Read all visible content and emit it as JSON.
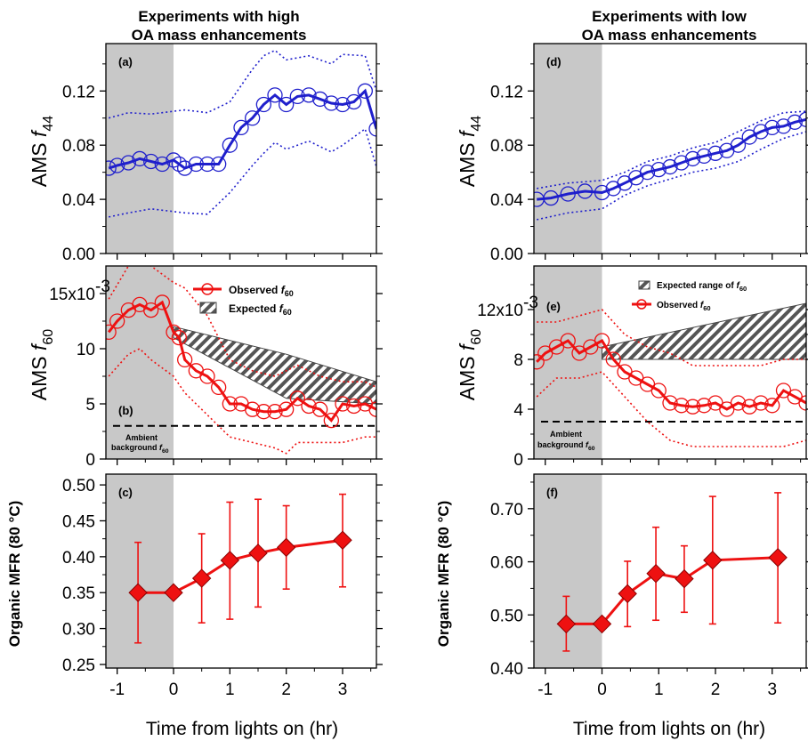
{
  "titles": {
    "left_line1": "Experiments with high",
    "left_line2": "OA mass enhancements",
    "right_line1": "Experiments with low",
    "right_line2": "OA mass enhancements"
  },
  "xlabel": "Time from lights on (hr)",
  "x_ticks": [
    "-1",
    "0",
    "1",
    "2",
    "3"
  ],
  "colors": {
    "f44": "#1f1fcc",
    "f60": "#ee1111",
    "mfr": "#ee1111",
    "shade": "#c8c8c8",
    "hatch": "#555555"
  },
  "panels": {
    "a": {
      "label": "(a)",
      "ylabel_main": "AMS ",
      "ylabel_italic": "f",
      "ylabel_sub": "44",
      "yticks": [
        "0.00",
        "0.04",
        "0.08",
        "0.12"
      ]
    },
    "b": {
      "label": "(b)",
      "ylabel_main": "AMS ",
      "ylabel_italic": "f",
      "ylabel_sub": "60",
      "yticks": [
        "0",
        "5",
        "10",
        "15x10"
      ],
      "exp": "-3",
      "legend_obs": "Observed ",
      "legend_exp": "Expected ",
      "legend_f": "f",
      "legend_sub": "60",
      "ambient1": "Ambient",
      "ambient2": "background ",
      "ambient_f": "f",
      "ambient_sub": "60"
    },
    "c": {
      "label": "(c)",
      "ylabel": "Organic MFR (80 °C)",
      "yticks": [
        "0.25",
        "0.30",
        "0.35",
        "0.40",
        "0.45",
        "0.50"
      ]
    },
    "d": {
      "label": "(d)",
      "ylabel_main": "AMS ",
      "ylabel_italic": "f",
      "ylabel_sub": "44",
      "yticks": [
        "0.00",
        "0.04",
        "0.08",
        "0.12"
      ]
    },
    "e": {
      "label": "(e)",
      "ylabel_main": "AMS ",
      "ylabel_italic": "f",
      "ylabel_sub": "60",
      "yticks": [
        "0",
        "4",
        "8",
        "12x10"
      ],
      "exp": "-3",
      "legend_exp": "Expected range of ",
      "legend_obs": "Observed ",
      "legend_f": "f",
      "legend_sub": "60",
      "ambient1": "Ambient",
      "ambient2": "background ",
      "ambient_f": "f",
      "ambient_sub": "60"
    },
    "f": {
      "label": "(f)",
      "ylabel": "Organic MFR (80 °C)",
      "yticks": [
        "0.40",
        "0.50",
        "0.60",
        "0.70"
      ]
    }
  },
  "chart_data": [
    {
      "type": "line",
      "panel": "a",
      "xlim": [
        -1.2,
        3.6
      ],
      "ylim": [
        0,
        0.155
      ],
      "shaded_x": [
        -1.2,
        0
      ],
      "series": [
        {
          "role": "main",
          "x": [
            -1.15,
            -1.0,
            -0.8,
            -0.6,
            -0.4,
            -0.2,
            0.0,
            0.1,
            0.2,
            0.4,
            0.6,
            0.8,
            1.0,
            1.2,
            1.4,
            1.6,
            1.8,
            2.0,
            2.2,
            2.4,
            2.6,
            2.8,
            3.0,
            3.2,
            3.4,
            3.6
          ],
          "y": [
            0.063,
            0.065,
            0.067,
            0.07,
            0.068,
            0.066,
            0.069,
            0.066,
            0.063,
            0.066,
            0.066,
            0.066,
            0.08,
            0.093,
            0.1,
            0.11,
            0.117,
            0.11,
            0.116,
            0.117,
            0.114,
            0.111,
            0.11,
            0.112,
            0.12,
            0.092
          ]
        },
        {
          "role": "upper",
          "x": [
            -1.15,
            -0.8,
            -0.4,
            0.0,
            0.2,
            0.6,
            1.0,
            1.2,
            1.4,
            1.6,
            1.8,
            2.0,
            2.4,
            2.8,
            3.0,
            3.4,
            3.6
          ],
          "y": [
            0.1,
            0.104,
            0.103,
            0.105,
            0.106,
            0.104,
            0.112,
            0.124,
            0.136,
            0.146,
            0.15,
            0.143,
            0.146,
            0.14,
            0.147,
            0.146,
            0.12
          ]
        },
        {
          "role": "lower",
          "x": [
            -1.15,
            -0.8,
            -0.4,
            0.0,
            0.2,
            0.6,
            1.0,
            1.2,
            1.4,
            1.6,
            1.8,
            2.0,
            2.4,
            2.8,
            3.0,
            3.4,
            3.6
          ],
          "y": [
            0.027,
            0.03,
            0.033,
            0.031,
            0.03,
            0.029,
            0.045,
            0.055,
            0.065,
            0.074,
            0.082,
            0.077,
            0.083,
            0.075,
            0.08,
            0.092,
            0.064
          ]
        }
      ]
    },
    {
      "type": "line",
      "panel": "b",
      "xlim": [
        -1.2,
        3.6
      ],
      "ylim": [
        0,
        17.5
      ],
      "y_scale_note": "x10^-3",
      "shaded_x": [
        -1.2,
        0
      ],
      "expected_band": {
        "x": [
          0.0,
          2.0,
          3.6
        ],
        "upper": [
          12.0,
          9.5,
          7.0
        ],
        "lower": [
          11.0,
          5.5,
          5.0
        ]
      },
      "ambient_background": 3.0,
      "series": [
        {
          "name": "Observed f60",
          "role": "main",
          "x": [
            -1.15,
            -1.0,
            -0.8,
            -0.6,
            -0.4,
            -0.2,
            0.0,
            0.1,
            0.2,
            0.4,
            0.6,
            0.8,
            1.0,
            1.2,
            1.4,
            1.6,
            1.8,
            2.0,
            2.2,
            2.4,
            2.6,
            2.8,
            3.0,
            3.2,
            3.4,
            3.6
          ],
          "y": [
            11.5,
            12.5,
            13.5,
            14.0,
            13.5,
            14.2,
            11.5,
            11.0,
            9.0,
            8.0,
            7.5,
            6.5,
            5.0,
            5.0,
            4.5,
            4.3,
            4.3,
            4.5,
            5.5,
            4.8,
            4.5,
            3.5,
            5.0,
            4.8,
            5.0,
            4.5
          ]
        },
        {
          "role": "upper",
          "x": [
            -1.15,
            -0.8,
            -0.6,
            -0.4,
            0.0,
            0.2,
            0.6,
            1.0,
            1.4,
            1.8,
            2.0,
            2.2,
            2.6,
            3.0,
            3.4,
            3.6
          ],
          "y": [
            14.5,
            17.5,
            18.0,
            17.5,
            16.0,
            15.5,
            13.0,
            9.0,
            8.0,
            7.5,
            8.0,
            8.5,
            7.5,
            7.0,
            7.0,
            6.5
          ]
        },
        {
          "role": "lower",
          "x": [
            -1.15,
            -0.8,
            -0.6,
            -0.4,
            0.0,
            0.2,
            0.6,
            1.0,
            1.4,
            1.8,
            2.0,
            2.2,
            2.6,
            3.0,
            3.4,
            3.6
          ],
          "y": [
            7.5,
            9.5,
            10.0,
            9.0,
            7.5,
            6.0,
            4.0,
            2.0,
            1.5,
            1.0,
            0.5,
            1.5,
            1.5,
            1.5,
            2.0,
            2.0
          ]
        }
      ]
    },
    {
      "type": "line",
      "panel": "c",
      "xlim": [
        -1.2,
        3.6
      ],
      "ylim": [
        0.245,
        0.515
      ],
      "shaded_x": [
        -1.2,
        0
      ],
      "series": [
        {
          "role": "main",
          "x": [
            -0.63,
            0.0,
            0.5,
            1.0,
            1.5,
            2.0,
            3.0
          ],
          "y": [
            0.35,
            0.35,
            0.37,
            0.395,
            0.405,
            0.413,
            0.423
          ],
          "err_low": [
            0.28,
            0.35,
            0.308,
            0.313,
            0.33,
            0.355,
            0.358
          ],
          "err_high": [
            0.42,
            0.35,
            0.432,
            0.476,
            0.48,
            0.471,
            0.487
          ]
        }
      ]
    },
    {
      "type": "line",
      "panel": "d",
      "xlim": [
        -1.2,
        3.6
      ],
      "ylim": [
        0,
        0.155
      ],
      "shaded_x": [
        -1.2,
        0
      ],
      "series": [
        {
          "role": "main",
          "x": [
            -1.15,
            -0.9,
            -0.6,
            -0.3,
            0.0,
            0.2,
            0.4,
            0.6,
            0.8,
            1.0,
            1.2,
            1.4,
            1.6,
            1.8,
            2.0,
            2.2,
            2.4,
            2.6,
            2.8,
            3.0,
            3.2,
            3.4,
            3.6
          ],
          "y": [
            0.04,
            0.041,
            0.044,
            0.046,
            0.045,
            0.048,
            0.052,
            0.056,
            0.06,
            0.062,
            0.064,
            0.067,
            0.07,
            0.072,
            0.074,
            0.076,
            0.08,
            0.086,
            0.09,
            0.093,
            0.094,
            0.097,
            0.099
          ]
        },
        {
          "role": "upper",
          "x": [
            -1.15,
            -0.6,
            0.0,
            0.4,
            0.8,
            1.2,
            1.6,
            2.0,
            2.4,
            2.8,
            3.2,
            3.6
          ],
          "y": [
            0.048,
            0.052,
            0.054,
            0.06,
            0.068,
            0.072,
            0.078,
            0.082,
            0.09,
            0.098,
            0.104,
            0.105
          ]
        },
        {
          "role": "lower",
          "x": [
            -1.15,
            -0.6,
            0.0,
            0.4,
            0.8,
            1.2,
            1.6,
            2.0,
            2.4,
            2.8,
            3.2,
            3.6
          ],
          "y": [
            0.025,
            0.03,
            0.033,
            0.043,
            0.05,
            0.055,
            0.06,
            0.063,
            0.068,
            0.077,
            0.085,
            0.09
          ]
        }
      ]
    },
    {
      "type": "line",
      "panel": "e",
      "xlim": [
        -1.2,
        3.6
      ],
      "ylim": [
        0,
        15.5
      ],
      "y_scale_note": "x10^-3",
      "shaded_x": [
        -1.2,
        0
      ],
      "expected_band": {
        "x": [
          0.0,
          3.6
        ],
        "upper": [
          9.0,
          12.5
        ],
        "lower": [
          8.0,
          8.0
        ]
      },
      "ambient_background": 3.0,
      "series": [
        {
          "name": "Observed f60",
          "role": "main",
          "x": [
            -1.15,
            -1.0,
            -0.8,
            -0.6,
            -0.4,
            -0.2,
            0.0,
            0.2,
            0.4,
            0.6,
            0.8,
            1.0,
            1.2,
            1.4,
            1.6,
            1.8,
            2.0,
            2.2,
            2.4,
            2.6,
            2.8,
            3.0,
            3.2,
            3.4,
            3.6
          ],
          "y": [
            7.8,
            8.5,
            9.0,
            9.5,
            8.5,
            9.0,
            9.5,
            8.0,
            7.0,
            6.5,
            6.0,
            5.5,
            4.5,
            4.3,
            4.2,
            4.3,
            4.5,
            4.0,
            4.5,
            4.2,
            4.5,
            4.3,
            5.5,
            5.0,
            4.5
          ]
        },
        {
          "role": "upper",
          "x": [
            -1.15,
            -0.8,
            -0.4,
            0.0,
            0.4,
            0.8,
            1.2,
            1.6,
            2.0,
            2.4,
            2.8,
            3.2,
            3.6
          ],
          "y": [
            11.0,
            11.0,
            11.5,
            12.0,
            10.0,
            9.0,
            8.5,
            7.5,
            7.5,
            7.5,
            7.5,
            8.0,
            8.0
          ]
        },
        {
          "role": "lower",
          "x": [
            -1.15,
            -0.8,
            -0.4,
            0.0,
            0.4,
            0.8,
            1.2,
            1.6,
            2.0,
            2.4,
            2.8,
            3.2,
            3.6
          ],
          "y": [
            5.0,
            6.5,
            6.5,
            7.0,
            5.0,
            3.0,
            1.5,
            1.0,
            1.0,
            1.0,
            1.0,
            1.0,
            1.5
          ]
        }
      ]
    },
    {
      "type": "line",
      "panel": "f",
      "xlim": [
        -1.2,
        3.6
      ],
      "ylim": [
        0.4,
        0.765
      ],
      "shaded_x": [
        -1.2,
        0
      ],
      "series": [
        {
          "role": "main",
          "x": [
            -0.63,
            0.0,
            0.45,
            0.95,
            1.45,
            1.95,
            3.1
          ],
          "y": [
            0.483,
            0.483,
            0.54,
            0.578,
            0.568,
            0.603,
            0.608
          ],
          "err_low": [
            0.432,
            0.483,
            0.478,
            0.49,
            0.505,
            0.483,
            0.485
          ],
          "err_high": [
            0.535,
            0.483,
            0.601,
            0.665,
            0.63,
            0.723,
            0.73
          ]
        }
      ]
    }
  ]
}
